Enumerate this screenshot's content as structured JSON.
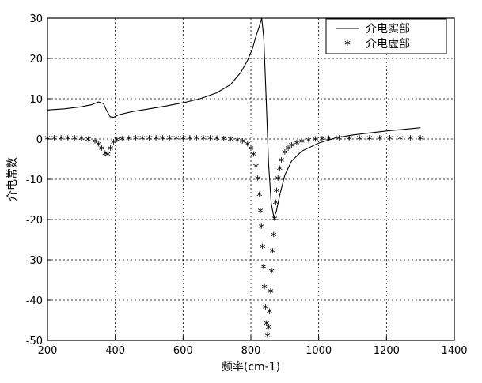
{
  "chart_data": {
    "type": "line",
    "title": "",
    "xlabel": "频率(cm-1)",
    "ylabel": "介电常数",
    "xlim": [
      200,
      1400
    ],
    "ylim": [
      -50,
      30
    ],
    "xticks": [
      200,
      400,
      600,
      800,
      1000,
      1200,
      1400
    ],
    "yticks": [
      30,
      20,
      10,
      0,
      -10,
      -20,
      -30,
      -40,
      -50
    ],
    "grid": true,
    "legend_position": "top-right",
    "series": [
      {
        "name": "介电实部",
        "style": "line",
        "color": "#000000",
        "x": [
          200,
          250,
          300,
          330,
          350,
          365,
          375,
          385,
          395,
          410,
          450,
          500,
          550,
          600,
          650,
          700,
          740,
          770,
          790,
          805,
          815,
          825,
          832,
          838,
          845,
          852,
          860,
          868,
          875,
          885,
          900,
          920,
          950,
          1000,
          1050,
          1100,
          1150,
          1200,
          1250,
          1300
        ],
        "y": [
          7.2,
          7.5,
          8.0,
          8.5,
          9.2,
          8.8,
          7.0,
          5.5,
          5.4,
          6.0,
          6.8,
          7.5,
          8.2,
          9.0,
          10.0,
          11.5,
          13.5,
          16.5,
          19.5,
          22.5,
          25.5,
          28.0,
          30.0,
          25.0,
          10.0,
          -6.0,
          -16.0,
          -19.5,
          -18.0,
          -14.0,
          -9.0,
          -5.5,
          -3.0,
          -1.0,
          0.3,
          1.0,
          1.5,
          2.0,
          2.4,
          2.8
        ]
      },
      {
        "name": "介电虚部",
        "style": "markers",
        "marker": "*",
        "color": "#000000",
        "x": [
          200,
          220,
          240,
          260,
          280,
          300,
          320,
          340,
          350,
          360,
          370,
          378,
          386,
          395,
          405,
          420,
          440,
          460,
          480,
          500,
          520,
          540,
          560,
          580,
          600,
          620,
          640,
          660,
          680,
          700,
          720,
          740,
          760,
          775,
          790,
          800,
          808,
          815,
          820,
          825,
          828,
          831,
          834,
          837,
          840,
          843,
          846,
          849,
          852,
          855,
          858,
          861,
          864,
          867,
          870,
          873,
          876,
          880,
          885,
          890,
          900,
          910,
          920,
          935,
          950,
          970,
          990,
          1010,
          1030,
          1060,
          1090,
          1120,
          1150,
          1180,
          1210,
          1240,
          1270,
          1300
        ],
        "y": [
          0,
          0,
          0,
          0,
          0,
          -0.1,
          -0.3,
          -0.8,
          -1.5,
          -2.5,
          -3.8,
          -4.0,
          -2.5,
          -1.0,
          -0.4,
          -0.2,
          -0.1,
          0,
          0,
          0,
          0,
          0,
          0,
          0,
          0,
          0,
          0,
          0,
          0,
          -0.1,
          -0.2,
          -0.3,
          -0.5,
          -0.8,
          -1.5,
          -2.5,
          -4.0,
          -7.0,
          -10.0,
          -14.0,
          -18.0,
          -22.0,
          -27.0,
          -32.0,
          -37.0,
          -42.0,
          -46.0,
          -49.0,
          -47.0,
          -43.0,
          -38.0,
          -33.0,
          -28.0,
          -24.0,
          -20.0,
          -16.0,
          -13.0,
          -10.0,
          -7.5,
          -5.5,
          -3.5,
          -2.5,
          -1.8,
          -1.2,
          -0.8,
          -0.5,
          -0.3,
          -0.2,
          -0.1,
          0,
          0,
          0,
          0,
          0,
          0,
          0,
          0,
          0
        ]
      }
    ]
  }
}
